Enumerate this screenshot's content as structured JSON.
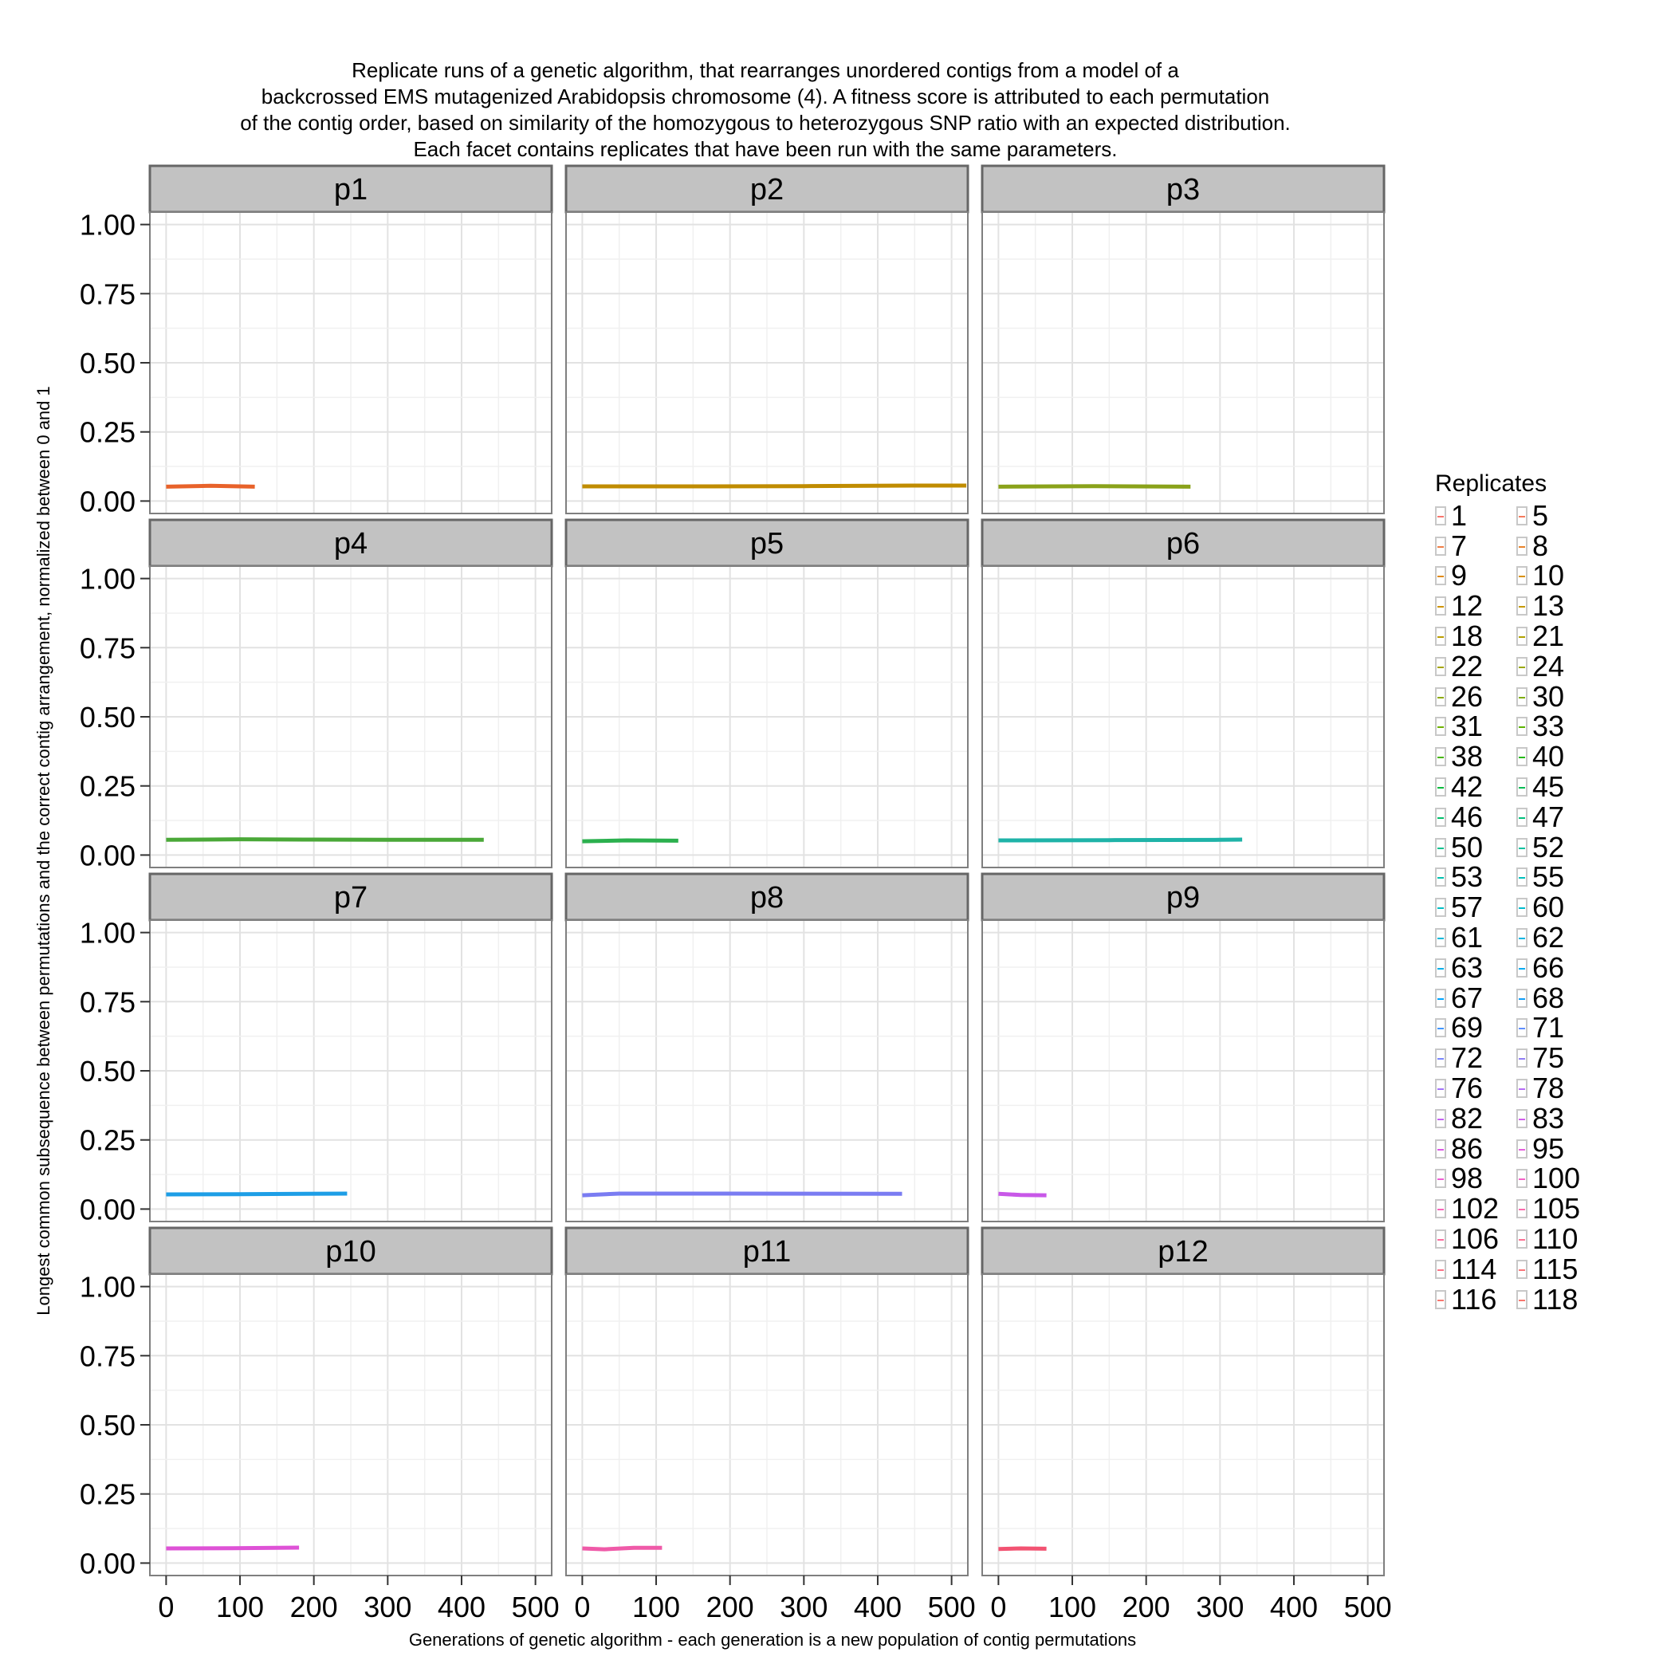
{
  "title_lines": [
    "Replicate runs of a genetic algorithm, that rearranges unordered contigs from a model of a",
    "backcrossed EMS mutagenized Arabidopsis chromosome (4). A fitness score is attributed to each permutation",
    "of the contig order, based on similarity of the homozygous to heterozygous SNP ratio with an expected distribution.",
    "Each facet contains replicates that have been run with the same parameters."
  ],
  "chart_data": {
    "type": "line",
    "title": "Replicate runs of a genetic algorithm, that rearranges unordered contigs from a model of a backcrossed EMS mutagenized Arabidopsis chromosome (4). A fitness score is attributed to each permutation of the contig order, based on similarity of the homozygous to heterozygous SNP ratio with an expected distribution. Each facet contains replicates that have been run with the same parameters.",
    "xlabel": "Generations of genetic algorithm - each generation is a new population of contig permutations",
    "ylabel": "Longest common subsequence between permutations and the correct contig arrangement, normalized between 0 and 1",
    "xlim": [
      -22,
      522
    ],
    "ylim": [
      -0.045,
      1.045
    ],
    "x_ticks": [
      0,
      100,
      200,
      300,
      400,
      500
    ],
    "x_tick_labels": [
      "0",
      "100",
      "200",
      "300",
      "400",
      "500"
    ],
    "y_ticks": [
      0,
      0.25,
      0.5,
      0.75,
      1
    ],
    "y_tick_labels": [
      "0.00",
      "0.25",
      "0.50",
      "0.75",
      "1.00"
    ],
    "grid": true,
    "legend": {
      "title": "Replicates",
      "position": "right",
      "entries": [
        "1",
        "5",
        "7",
        "8",
        "9",
        "10",
        "12",
        "13",
        "18",
        "21",
        "22",
        "24",
        "26",
        "30",
        "31",
        "33",
        "38",
        "40",
        "42",
        "45",
        "46",
        "47",
        "50",
        "52",
        "53",
        "55",
        "57",
        "60",
        "61",
        "62",
        "63",
        "66",
        "67",
        "68",
        "69",
        "71",
        "72",
        "75",
        "76",
        "78",
        "82",
        "83",
        "86",
        "95",
        "98",
        "100",
        "102",
        "105",
        "106",
        "110",
        "114",
        "115",
        "116",
        "118"
      ],
      "colors": [
        "#f8766d",
        "#f47a5c",
        "#ef7f47",
        "#e8832a",
        "#e08a14",
        "#d89000",
        "#cf9400",
        "#c59900",
        "#bb9d00",
        "#b0a100",
        "#a5a500",
        "#99a800",
        "#8cab00",
        "#7eae00",
        "#6eb200",
        "#5bb400",
        "#45b700",
        "#24ba16",
        "#00bc3c",
        "#00bd55",
        "#00bf6a",
        "#00c07c",
        "#00c18e",
        "#00c19f",
        "#00c1ae",
        "#00c0bc",
        "#00bfc4",
        "#00bccd",
        "#00b9d9",
        "#00b5e2",
        "#00b0ea",
        "#00abf2",
        "#00a5ff",
        "#0f9df7",
        "#4196ff",
        "#5e8eff",
        "#7a87ff",
        "#8f7cf6",
        "#a374fb",
        "#b56bf7",
        "#c462f2",
        "#d15ced",
        "#dc59e5",
        "#e55ede",
        "#ee5fd4",
        "#f462c8",
        "#f866bb",
        "#fb6aad",
        "#fc6d9f",
        "#fc7192",
        "#fa7486",
        "#f9767a",
        "#f8776f",
        "#f8766d"
      ]
    },
    "panels": [
      {
        "name": "p1",
        "series": [
          {
            "color": "#e8622a",
            "x": [
              0,
              60,
              120
            ],
            "y": [
              0.052,
              0.055,
              0.052
            ]
          }
        ]
      },
      {
        "name": "p2",
        "series": [
          {
            "color": "#c08c00",
            "x": [
              0,
              150,
              300,
              450,
              520
            ],
            "y": [
              0.053,
              0.053,
              0.054,
              0.056,
              0.056
            ]
          }
        ]
      },
      {
        "name": "p3",
        "series": [
          {
            "color": "#8aa21a",
            "x": [
              0,
              130,
              260
            ],
            "y": [
              0.052,
              0.054,
              0.052
            ]
          }
        ]
      },
      {
        "name": "p4",
        "series": [
          {
            "color": "#4aa838",
            "x": [
              0,
              100,
              200,
              300,
              430
            ],
            "y": [
              0.055,
              0.057,
              0.056,
              0.055,
              0.055
            ]
          }
        ]
      },
      {
        "name": "p5",
        "series": [
          {
            "color": "#2bb04e",
            "x": [
              0,
              60,
              130
            ],
            "y": [
              0.05,
              0.053,
              0.052
            ]
          }
        ]
      },
      {
        "name": "p6",
        "series": [
          {
            "color": "#1fb3a8",
            "x": [
              0,
              150,
              300,
              330
            ],
            "y": [
              0.053,
              0.054,
              0.055,
              0.056
            ]
          }
        ]
      },
      {
        "name": "p7",
        "series": [
          {
            "color": "#1d9ee6",
            "x": [
              0,
              100,
              245
            ],
            "y": [
              0.053,
              0.054,
              0.056
            ]
          }
        ]
      },
      {
        "name": "p8",
        "series": [
          {
            "color": "#7a7cf2",
            "x": [
              0,
              50,
              200,
              433
            ],
            "y": [
              0.05,
              0.056,
              0.056,
              0.055
            ]
          }
        ]
      },
      {
        "name": "p9",
        "series": [
          {
            "color": "#c858e8",
            "x": [
              0,
              30,
              65
            ],
            "y": [
              0.055,
              0.051,
              0.05
            ]
          }
        ]
      },
      {
        "name": "p10",
        "series": [
          {
            "color": "#de52d6",
            "x": [
              0,
              90,
              180
            ],
            "y": [
              0.053,
              0.054,
              0.056
            ]
          }
        ]
      },
      {
        "name": "p11",
        "series": [
          {
            "color": "#ef5aa8",
            "x": [
              0,
              30,
              70,
              108
            ],
            "y": [
              0.053,
              0.05,
              0.055,
              0.055
            ]
          }
        ]
      },
      {
        "name": "p12",
        "series": [
          {
            "color": "#f25372",
            "x": [
              0,
              30,
              65
            ],
            "y": [
              0.051,
              0.053,
              0.052
            ]
          }
        ]
      }
    ]
  }
}
